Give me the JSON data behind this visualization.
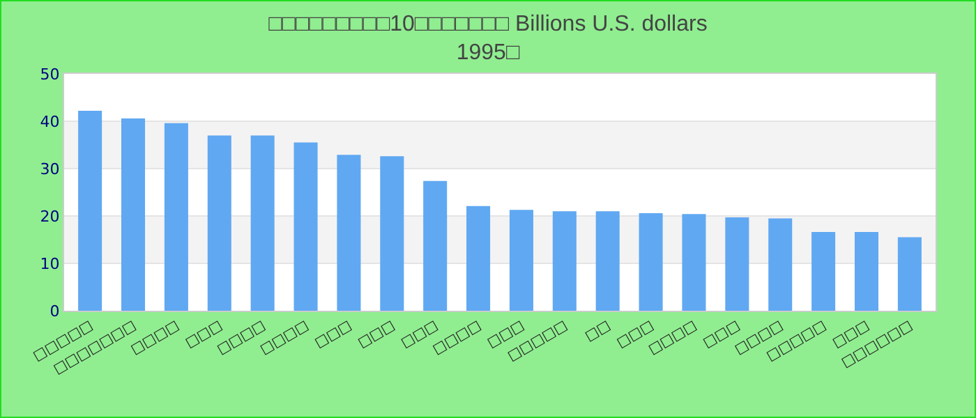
{
  "chart_data": {
    "type": "bar",
    "title": "□□□□□□□□□10□□□□□□□ Billions U.S. dollars",
    "subtitle": "1995□",
    "categories": [
      "□□□□□",
      "□□□□□□□",
      "□□□□",
      "□□□",
      "□□□□",
      "□□□□",
      "□□□",
      "□□□",
      "□□□",
      "□□□□",
      "□□□",
      "□□□□□",
      "□□",
      "□□□",
      "□□□□",
      "□□□",
      "□□□□",
      "□□□□□",
      "□□□",
      "□□□□□□"
    ],
    "values": [
      42.2,
      40.6,
      39.6,
      37.0,
      37.0,
      35.5,
      32.9,
      32.6,
      27.4,
      22.1,
      21.3,
      21.0,
      21.0,
      20.6,
      20.4,
      19.7,
      19.5,
      16.6,
      16.6,
      15.5
    ],
    "color": "#60a8f2",
    "ylim": [
      0,
      50
    ],
    "yticks": [
      0,
      10,
      20,
      30,
      40,
      50
    ],
    "grid": true
  }
}
